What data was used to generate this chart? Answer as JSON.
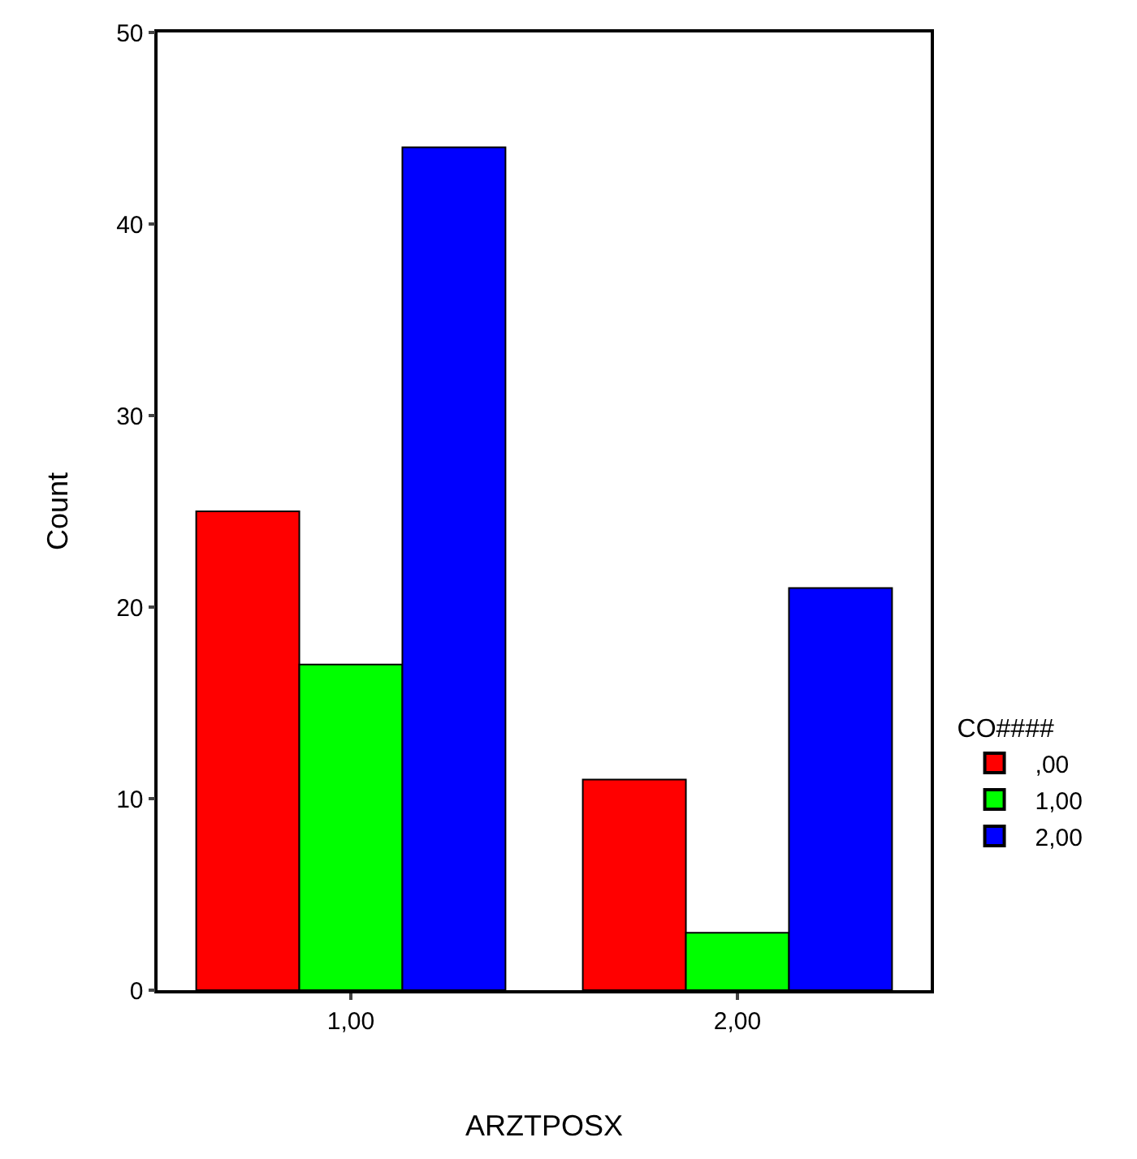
{
  "chart_data": {
    "type": "bar",
    "xlabel": "ARZTPOSX",
    "ylabel": "Count",
    "legend_title": "CO####",
    "categories": [
      "1,00",
      "2,00"
    ],
    "series": [
      {
        "name": ",00",
        "color": "#ff0000",
        "values": [
          25,
          11
        ]
      },
      {
        "name": "1,00",
        "color": "#00ff00",
        "values": [
          17,
          3
        ]
      },
      {
        "name": "2,00",
        "color": "#0000ff",
        "values": [
          44,
          21
        ]
      }
    ],
    "ylim": [
      0,
      50
    ],
    "yticks": [
      0,
      10,
      20,
      30,
      40,
      50
    ],
    "grid": false,
    "legend": "right"
  }
}
